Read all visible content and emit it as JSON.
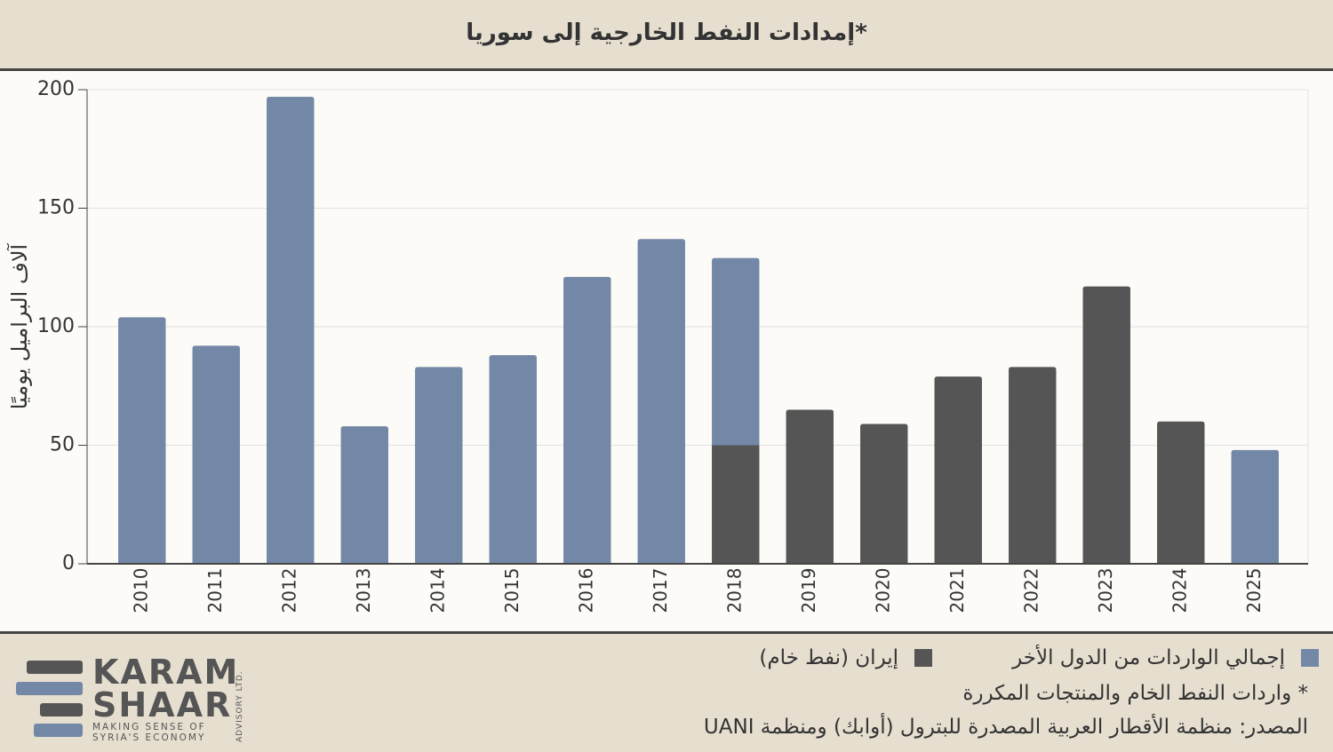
{
  "chart_data": {
    "type": "stacked-bar",
    "title": "إمدادات النفط الخارجية  إلى سوريا*",
    "y_label": "آلاف البراميل يوميًا",
    "categories": [
      "2010",
      "2011",
      "2012",
      "2013",
      "2014",
      "2015",
      "2016",
      "2017",
      "2018",
      "2019",
      "2020",
      "2021",
      "2022",
      "2023",
      "2024",
      "2025"
    ],
    "series": [
      {
        "name": "إيران (نفط خام)",
        "color": "#555555",
        "values": [
          null,
          null,
          null,
          null,
          null,
          null,
          null,
          null,
          50,
          65,
          59,
          79,
          83,
          117,
          60,
          null
        ]
      },
      {
        "name": "إجمالي الواردات من الدول الأخر",
        "color": "#7388a7",
        "values": [
          104,
          92,
          197,
          58,
          83,
          88,
          121,
          137,
          79,
          null,
          null,
          null,
          null,
          null,
          null,
          48
        ]
      }
    ],
    "ylim": [
      0,
      200
    ],
    "yticks": [
      0,
      50,
      100,
      150,
      200
    ],
    "grid": true,
    "note": "* واردات النفط الخام والمنتجات المكررة",
    "source": "المصدر: منظمة الأقطار العربية المصدرة للبترول (أوابك) ومنظمة UANI"
  },
  "logo": {
    "line1": "KARAM",
    "line2": "SHAAR",
    "tagline1": "MAKING SENSE OF",
    "tagline2": "SYRIA'S ECONOMY",
    "side": "ADVISORY LTD."
  }
}
